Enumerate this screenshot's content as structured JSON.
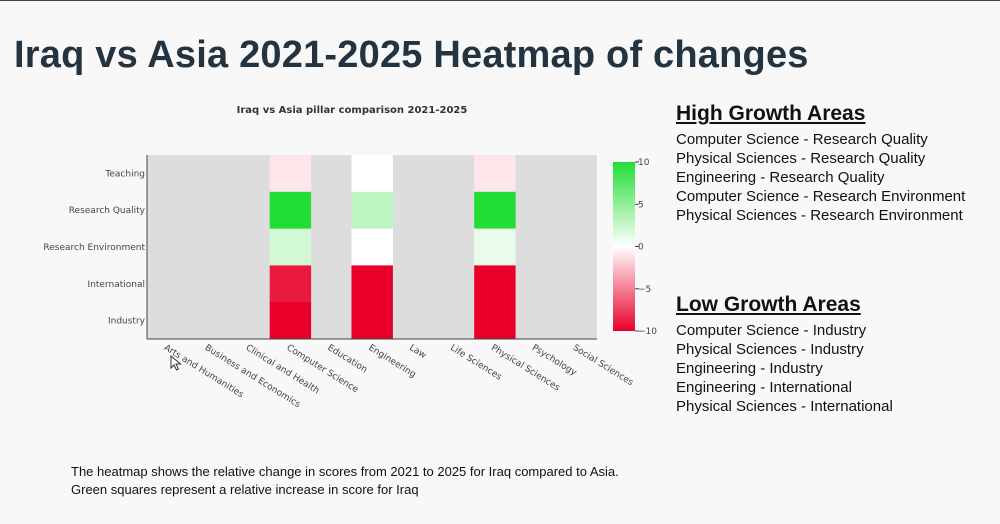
{
  "slide": {
    "title": "Iraq vs Asia 2021-2025 Heatmap of changes"
  },
  "chart_data": {
    "type": "heatmap",
    "title": "Iraq vs Asia pillar comparison 2021-2025",
    "xlabel": "",
    "ylabel": "",
    "x_categories": [
      "Arts and Humanities",
      "Business and Economics",
      "Clinical and Health",
      "Computer Science",
      "Education",
      "Engineering",
      "Law",
      "Life Sciences",
      "Physical Sciences",
      "Psychology",
      "Social Sciences"
    ],
    "y_categories": [
      "Teaching",
      "Research Quality",
      "Research Environment",
      "International",
      "Industry"
    ],
    "values": [
      [
        null,
        null,
        null,
        -1,
        null,
        0,
        null,
        null,
        -1,
        null,
        null
      ],
      [
        null,
        null,
        null,
        10,
        null,
        3,
        null,
        null,
        10,
        null,
        null
      ],
      [
        null,
        null,
        null,
        2,
        null,
        0,
        null,
        null,
        1,
        null,
        null
      ],
      [
        null,
        null,
        null,
        -9,
        null,
        -10,
        null,
        null,
        -10,
        null,
        null
      ],
      [
        null,
        null,
        null,
        -10,
        null,
        -10,
        null,
        null,
        -10,
        null,
        null
      ]
    ],
    "missing_color": "#dddddd",
    "colorscale": {
      "min": -10,
      "max": 10,
      "low_color": "#e8002a",
      "mid_color": "#ffffff",
      "high_color": "#22dd33",
      "ticks": [
        {
          "value": 10,
          "label": "10"
        },
        {
          "value": 5,
          "label": "5"
        },
        {
          "value": 0,
          "label": "0"
        },
        {
          "value": -5,
          "label": "−5"
        },
        {
          "value": -10,
          "label": "−10"
        }
      ]
    }
  },
  "high_growth": {
    "heading": "High Growth Areas",
    "items": [
      "Computer Science - Research Quality",
      "Physical Sciences - Research Quality",
      "Engineering - Research Quality",
      "Computer Science - Research Environment",
      "Physical Sciences - Research Environment"
    ]
  },
  "low_growth": {
    "heading": "Low Growth Areas",
    "items": [
      "Computer Science - Industry",
      "Physical Sciences - Industry",
      "Engineering - Industry",
      "Engineering - International",
      "Physical Sciences - International"
    ]
  },
  "caption": {
    "line1": "The heatmap shows the relative change in scores from 2021 to 2025 for Iraq compared to Asia.",
    "line2": "Green squares represent a relative increase in score for Iraq"
  },
  "icons": {
    "cursor": "mouse-pointer-icon"
  }
}
